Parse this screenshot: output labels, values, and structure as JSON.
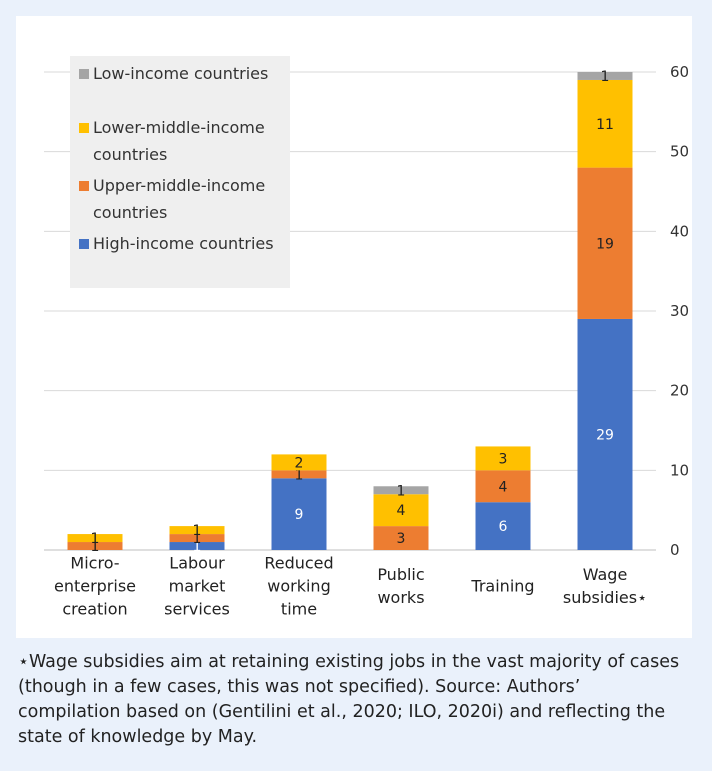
{
  "chart_data": {
    "type": "bar",
    "stacked": true,
    "categories": [
      [
        "Micro-",
        "enterprise",
        "creation"
      ],
      [
        "Labour",
        "market",
        "services"
      ],
      [
        "Reduced",
        "working",
        "time"
      ],
      [
        "Public",
        "works"
      ],
      [
        "Training"
      ],
      [
        "Wage",
        "subsidies⋆"
      ]
    ],
    "series": [
      {
        "name": "High-income countries",
        "color": "#4472c4",
        "values": [
          0,
          1,
          9,
          0,
          6,
          29
        ],
        "labels": [
          "",
          "1",
          "9",
          "",
          "6",
          "29"
        ],
        "label_color": "#ffffff"
      },
      {
        "name": "Upper-middle-income countries",
        "color": "#ed7d31",
        "values": [
          1,
          1,
          1,
          3,
          4,
          19
        ],
        "labels": [
          "1",
          "1",
          "1",
          "3",
          "4",
          "19"
        ],
        "label_color": "#222222"
      },
      {
        "name": "Lower-middle-income countries",
        "color": "#ffc000",
        "values": [
          1,
          1,
          2,
          4,
          3,
          11
        ],
        "labels": [
          "1",
          "1",
          "2",
          "4",
          "3",
          "11"
        ],
        "label_color": "#222222"
      },
      {
        "name": "Low-income countries",
        "color": "#a5a5a5",
        "values": [
          0,
          0,
          0,
          1,
          0,
          1
        ],
        "labels": [
          "",
          "",
          "",
          "1",
          "",
          "1"
        ],
        "label_color": "#222222"
      }
    ],
    "legend": {
      "position": "top-left",
      "entries": [
        {
          "lines": [
            "Low-income countries"
          ],
          "color": "#a5a5a5"
        },
        {
          "lines": [
            "Lower-middle-income",
            "countries"
          ],
          "color": "#ffc000"
        },
        {
          "lines": [
            "Upper-middle-income",
            "countries"
          ],
          "color": "#ed7d31"
        },
        {
          "lines": [
            "High-income countries"
          ],
          "color": "#4472c4"
        }
      ]
    },
    "y_axis": {
      "position": "right",
      "ticks": [
        0,
        10,
        20,
        30,
        40,
        50,
        60
      ],
      "ylim": [
        0,
        60
      ]
    },
    "grid": true
  },
  "note": "⋆Wage subsidies aim at retaining existing jobs in the vast majority of cases (though in a few cases, this was not specified). Source: Authors’ compilation based on (Gentilini et al., 2020; ILO, 2020i) and reflecting the state of knowledge by May."
}
